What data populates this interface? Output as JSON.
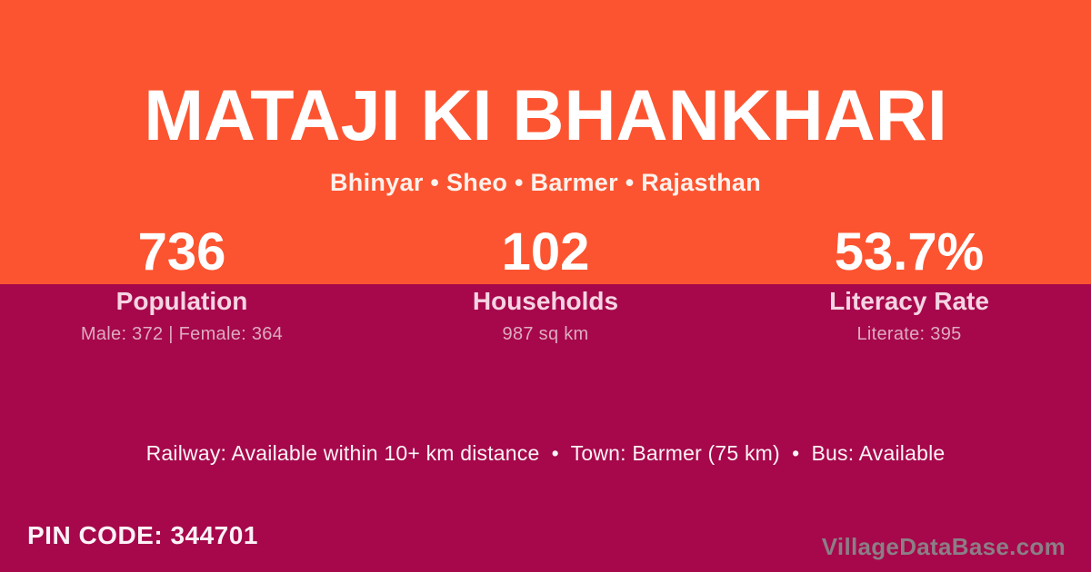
{
  "colors": {
    "top_background": "#FC5430",
    "bottom_background": "#A6084B",
    "title_text": "#FFFFFF",
    "label_pink": "#F5D4E3",
    "detail_pink": "#DEAAC0",
    "watermark_gray": "#8C7E86"
  },
  "header": {
    "village_name": "MATAJI KI BHANKHARI",
    "location_breadcrumb": "Bhinyar • Sheo • Barmer • Rajasthan"
  },
  "stats": [
    {
      "value": "736",
      "label": "Population",
      "detail": "Male: 372 | Female: 364"
    },
    {
      "value": "102",
      "label": "Households",
      "detail": "987 sq km"
    },
    {
      "value": "53.7%",
      "label": "Literacy Rate",
      "detail": "Literate: 395"
    }
  ],
  "transport_line": "Railway: Available within 10+ km distance  •  Town: Barmer (75 km)  •  Bus: Available",
  "pin_code": "PIN CODE: 344701",
  "watermark": "VillageDataBase.com"
}
